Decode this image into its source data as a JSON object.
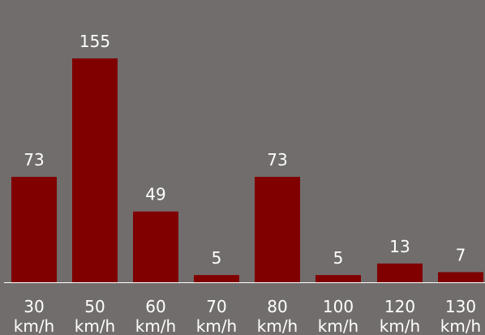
{
  "chart_data": {
    "type": "bar",
    "categories": [
      "30 km/h",
      "50 km/h",
      "60 km/h",
      "70 km/h",
      "80 km/h",
      "100 km/h",
      "120 km/h",
      "130 km/h"
    ],
    "category_lines": [
      [
        "30",
        "km/h"
      ],
      [
        "50",
        "km/h"
      ],
      [
        "60",
        "km/h"
      ],
      [
        "70",
        "km/h"
      ],
      [
        "80",
        "km/h"
      ],
      [
        "100",
        "km/h"
      ],
      [
        "120",
        "km/h"
      ],
      [
        "130",
        "km/h"
      ]
    ],
    "values": [
      73,
      155,
      49,
      5,
      73,
      5,
      13,
      7
    ],
    "title": "",
    "xlabel": "",
    "ylabel": "",
    "ylim": [
      0,
      155
    ],
    "grid": false,
    "legend": "none",
    "data_labels": true
  },
  "colors": {
    "background": "#716d6c",
    "bar": "#800000",
    "axis": "#ffffff",
    "text": "#ffffff"
  }
}
